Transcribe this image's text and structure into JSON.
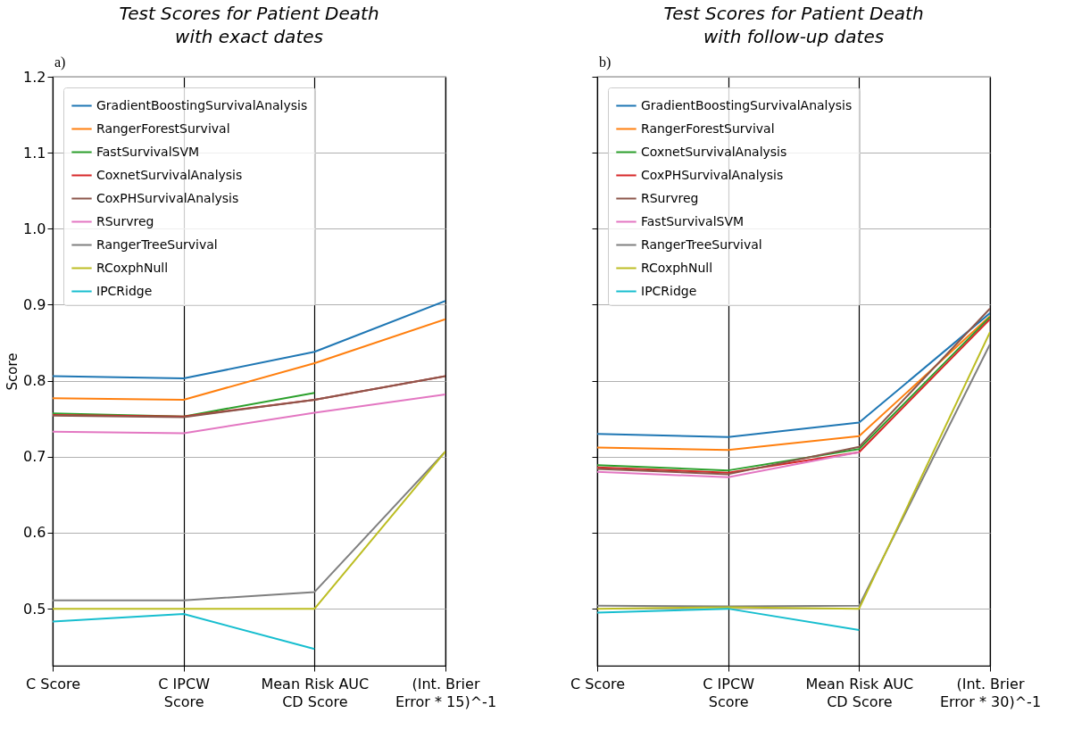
{
  "chart_data": [
    {
      "type": "line",
      "title": "Test Scores for Patient Death\nwith exact dates",
      "ylabel": "Score",
      "annotations": [
        "a)"
      ],
      "categories": [
        "C Score",
        "C IPCW\nScore",
        "Mean Risk AUC\nCD Score",
        "(Int. Brier\nError * 15)^-1"
      ],
      "ylim": [
        0.425,
        1.2
      ],
      "yticks": [
        0.5,
        0.6,
        0.7,
        0.8,
        0.9,
        {
          "value": 1,
          "label": "1.0"
        },
        1.1,
        1.2
      ],
      "grid": true,
      "legend": "top left",
      "series": [
        {
          "name": "GradientBoostingSurvivalAnalysis",
          "color": "#1f77b4",
          "values": [
            0.806,
            0.803,
            0.838,
            0.905
          ]
        },
        {
          "name": "RangerForestSurvival",
          "color": "#ff7f0e",
          "values": [
            0.777,
            0.775,
            0.823,
            0.881
          ]
        },
        {
          "name": "FastSurvivalSVM",
          "color": "#2ca02c",
          "values": [
            0.757,
            0.753,
            0.784,
            null
          ]
        },
        {
          "name": "CoxnetSurvivalAnalysis",
          "color": "#d62728",
          "values": [
            0.755,
            0.753,
            0.775,
            0.806
          ]
        },
        {
          "name": "CoxPHSurvivalAnalysis",
          "color": "#8c564b",
          "values": [
            0.754,
            0.752,
            0.775,
            0.806
          ]
        },
        {
          "name": "RSurvreg",
          "color": "#e377c2",
          "values": [
            0.733,
            0.731,
            0.758,
            0.782
          ]
        },
        {
          "name": "RangerTreeSurvival",
          "color": "#7f7f7f",
          "values": [
            0.511,
            0.511,
            0.522,
            0.707
          ]
        },
        {
          "name": "RCoxphNull",
          "color": "#bcbd22",
          "values": [
            0.5,
            0.5,
            0.5,
            0.707
          ]
        },
        {
          "name": "IPCRidge",
          "color": "#17becf",
          "values": [
            0.483,
            0.493,
            0.447,
            null
          ]
        }
      ]
    },
    {
      "type": "line",
      "title": "Test Scores for Patient Death\nwith follow-up dates",
      "annotations": [
        "b)"
      ],
      "categories": [
        "C Score",
        "C IPCW\nScore",
        "Mean Risk AUC\nCD Score",
        "(Int. Brier\nError * 30)^-1"
      ],
      "ylim": [
        0.425,
        1.2
      ],
      "yticks": [
        0.5,
        0.6,
        0.7,
        0.8,
        0.9,
        1,
        1.1,
        1.2
      ],
      "tick_labels": "x",
      "grid": true,
      "legend": "top left",
      "series": [
        {
          "name": "GradientBoostingSurvivalAnalysis",
          "color": "#1f77b4",
          "values": [
            0.73,
            0.726,
            0.745,
            0.889
          ]
        },
        {
          "name": "RangerForestSurvival",
          "color": "#ff7f0e",
          "values": [
            0.712,
            0.709,
            0.727,
            0.885
          ]
        },
        {
          "name": "CoxnetSurvivalAnalysis",
          "color": "#2ca02c",
          "values": [
            0.689,
            0.682,
            0.71,
            0.884
          ]
        },
        {
          "name": "CoxPHSurvivalAnalysis",
          "color": "#d62728",
          "values": [
            0.686,
            0.679,
            0.706,
            0.881
          ]
        },
        {
          "name": "RSurvreg",
          "color": "#8c564b",
          "values": [
            0.684,
            0.677,
            0.713,
            0.895
          ]
        },
        {
          "name": "FastSurvivalSVM",
          "color": "#e377c2",
          "values": [
            0.68,
            0.673,
            0.706,
            null
          ]
        },
        {
          "name": "RangerTreeSurvival",
          "color": "#7f7f7f",
          "values": [
            0.504,
            0.503,
            0.504,
            0.848
          ]
        },
        {
          "name": "RCoxphNull",
          "color": "#bcbd22",
          "values": [
            0.5,
            0.502,
            0.5,
            0.864
          ]
        },
        {
          "name": "IPCRidge",
          "color": "#17becf",
          "values": [
            0.495,
            0.5,
            0.472,
            null
          ]
        }
      ]
    }
  ]
}
